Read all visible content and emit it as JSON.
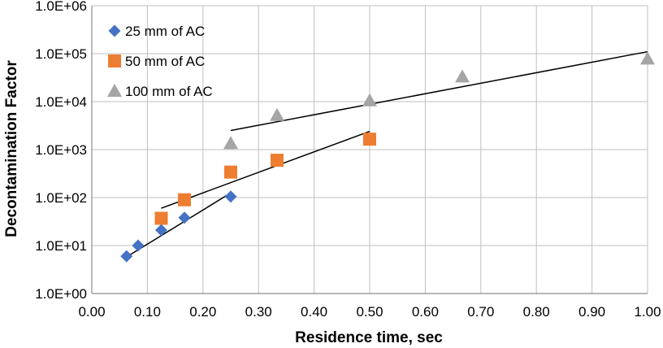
{
  "chart_data": {
    "type": "scatter",
    "title": "",
    "xlabel": "Residence time, sec",
    "ylabel": "Decontamination Factor",
    "xlim": [
      0,
      1
    ],
    "ylim": [
      1,
      1000000
    ],
    "yscale": "log",
    "grid": true,
    "legend_position": "top-left",
    "x_ticks": [
      0,
      0.1,
      0.2,
      0.3,
      0.4,
      0.5,
      0.6,
      0.7,
      0.8,
      0.9,
      1.0
    ],
    "x_tick_labels": [
      "0.00",
      "0.10",
      "0.20",
      "0.30",
      "0.40",
      "0.50",
      "0.60",
      "0.70",
      "0.80",
      "0.90",
      "1.00"
    ],
    "y_ticks": [
      1,
      10,
      100,
      1000,
      10000,
      100000,
      1000000
    ],
    "y_tick_labels": [
      "1.0E+00",
      "1.0E+01",
      "1.0E+02",
      "1.0E+03",
      "1.0E+04",
      "1.0E+05",
      "1.0E+06"
    ],
    "series": [
      {
        "name": "25 mm of AC",
        "marker": "diamond",
        "color": "#4472C4",
        "x": [
          0.0625,
          0.0833,
          0.125,
          0.1667,
          0.25
        ],
        "y": [
          6,
          10,
          21,
          38,
          105
        ],
        "trendline": {
          "x": [
            0.0625,
            0.25
          ],
          "y": [
            5.8,
            125
          ]
        }
      },
      {
        "name": "50 mm of AC",
        "marker": "square",
        "color": "#ED7D31",
        "x": [
          0.125,
          0.1667,
          0.25,
          0.3333,
          0.5
        ],
        "y": [
          37,
          90,
          340,
          600,
          1650
        ],
        "trendline": {
          "x": [
            0.125,
            0.5
          ],
          "y": [
            60,
            2400
          ]
        }
      },
      {
        "name": "100 mm of AC",
        "marker": "triangle",
        "color": "#A5A5A5",
        "x": [
          0.25,
          0.3333,
          0.5,
          0.6667,
          1.0
        ],
        "y": [
          1350,
          5200,
          10500,
          33000,
          78000
        ],
        "trendline": {
          "x": [
            0.25,
            1.0
          ],
          "y": [
            2500,
            110000
          ]
        }
      }
    ]
  }
}
